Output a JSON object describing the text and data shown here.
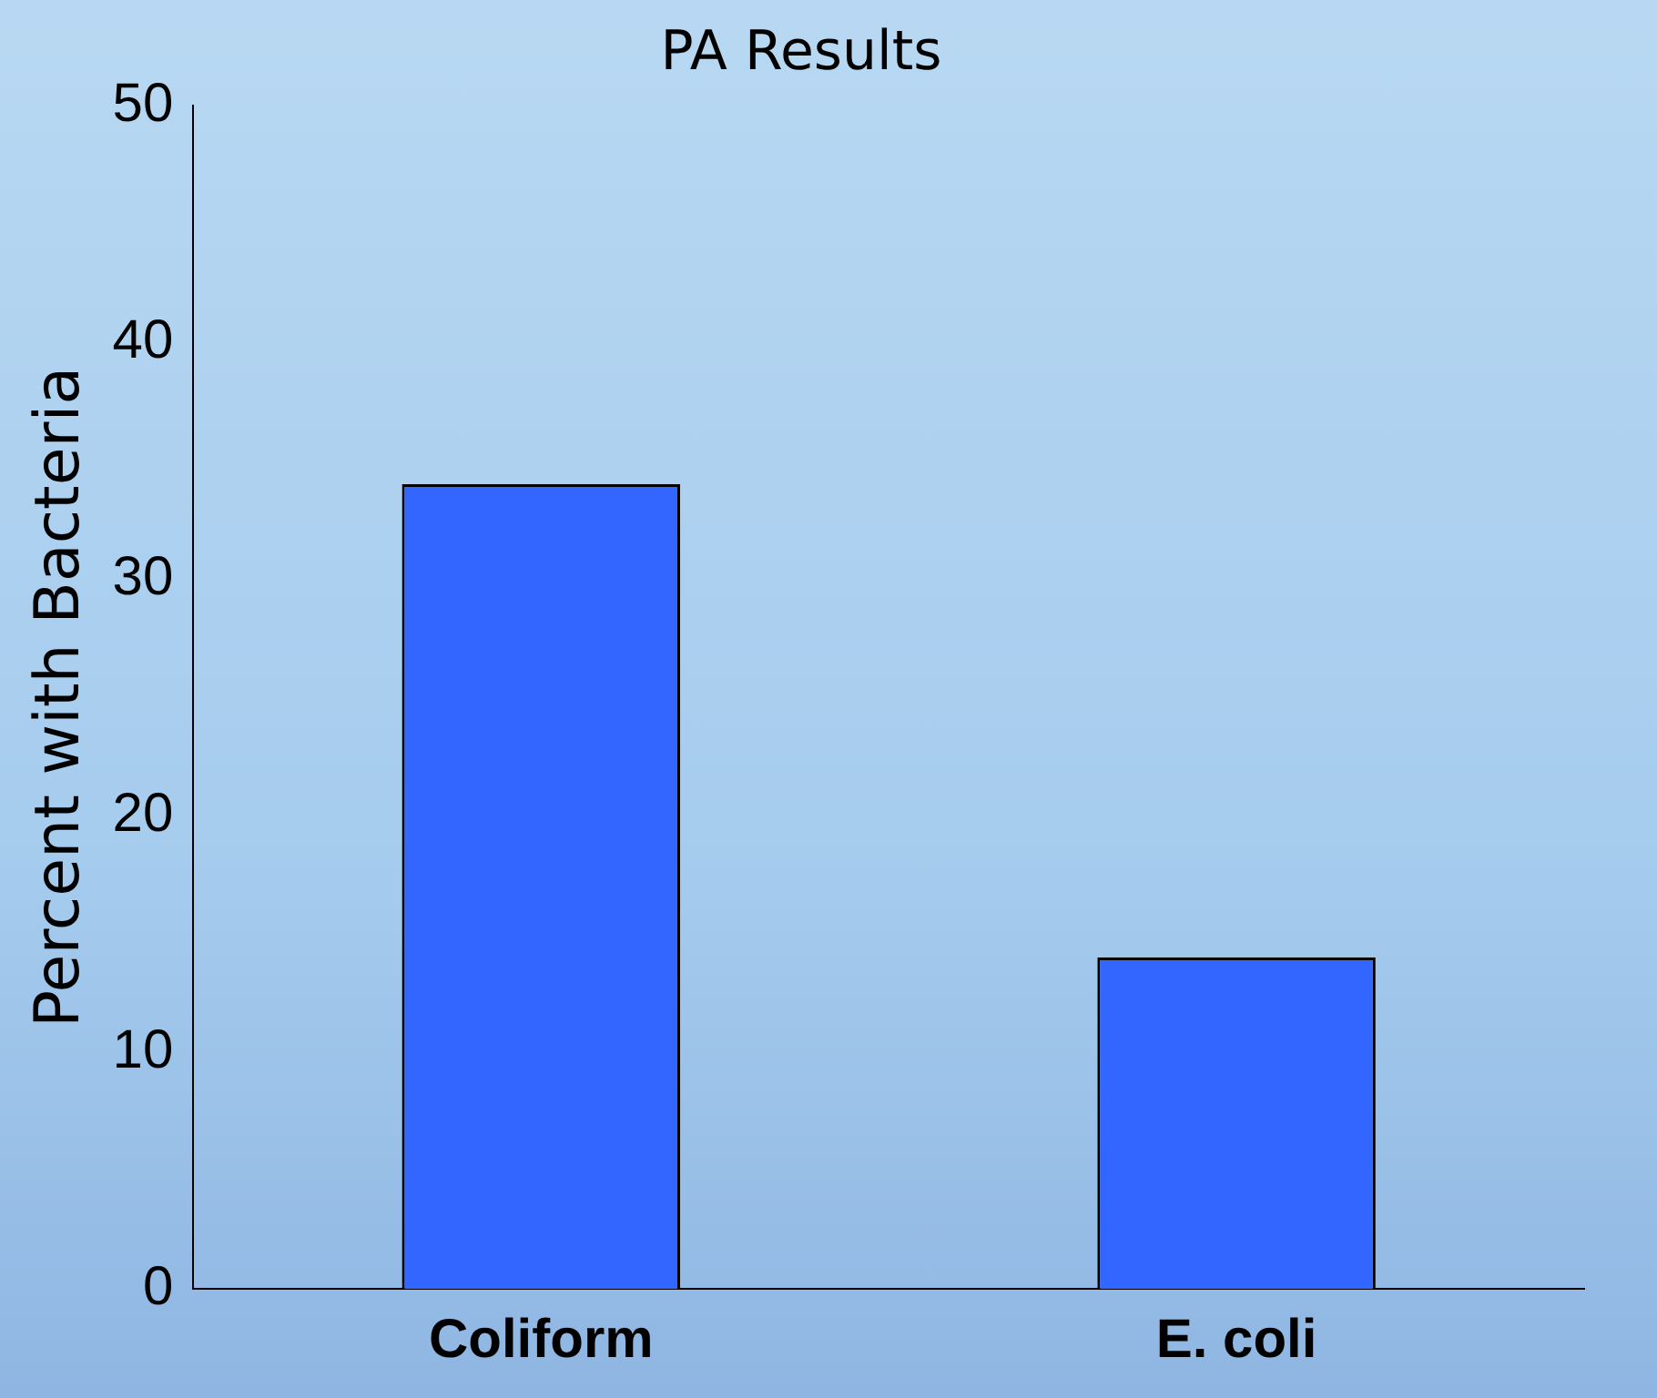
{
  "chart_data": {
    "type": "bar",
    "title": "PA Results",
    "ylabel": "Percent with Bacteria",
    "categories": [
      "Coliform",
      "E. coli"
    ],
    "values": [
      34,
      14
    ],
    "color": "#3366ff",
    "ylim": [
      0,
      50
    ],
    "yticks": [
      0,
      10,
      20,
      30,
      40,
      50
    ],
    "grid": false,
    "legend": false
  }
}
